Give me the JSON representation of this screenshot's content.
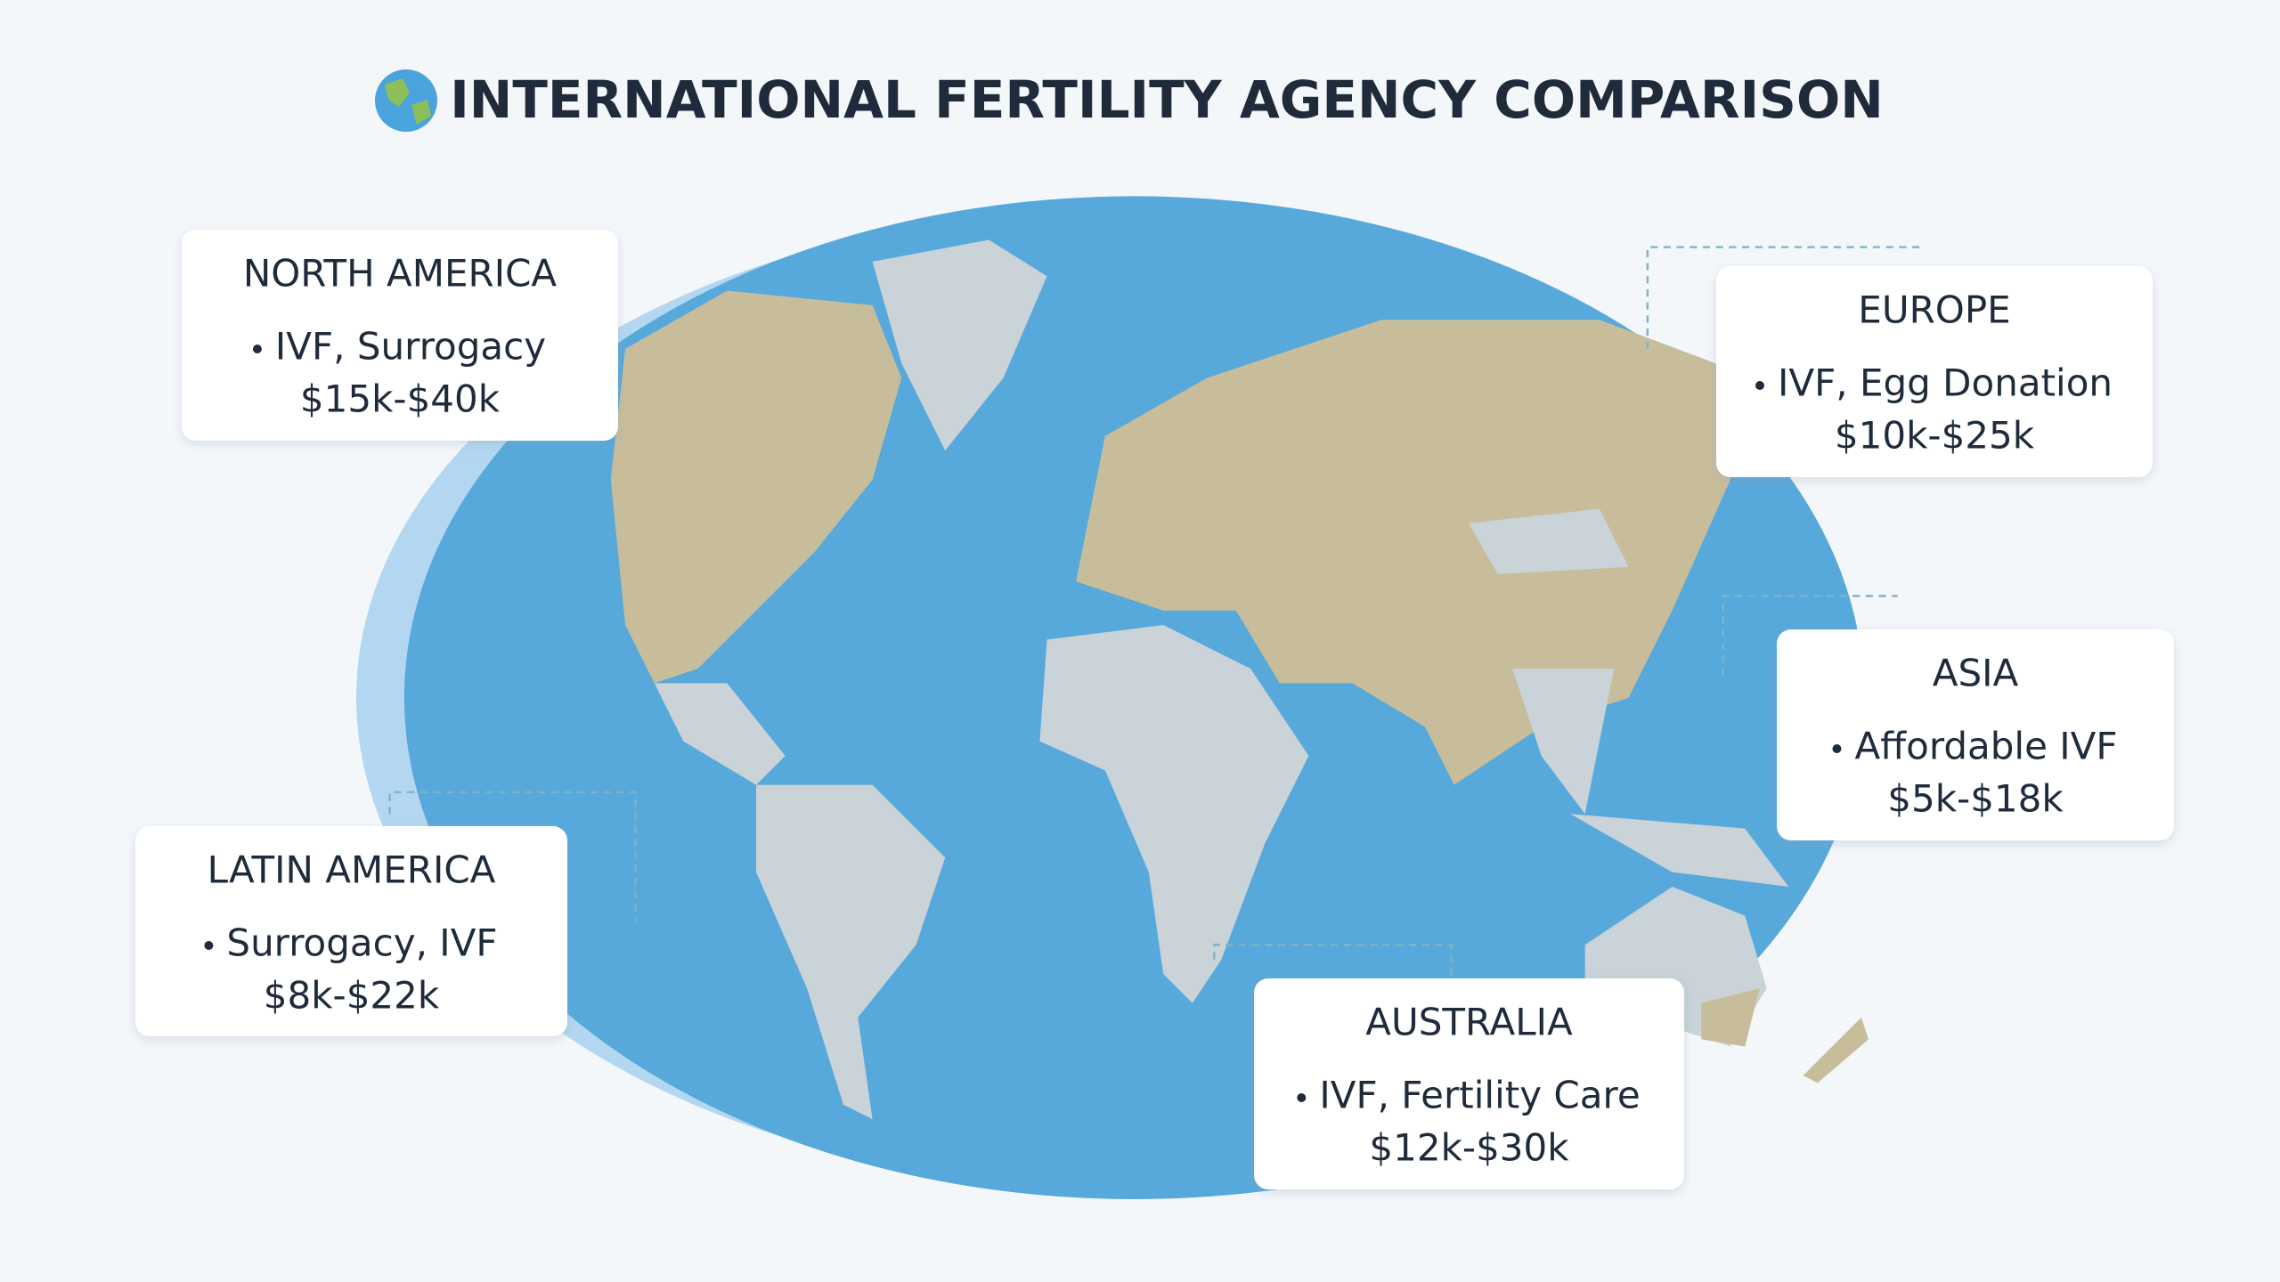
{
  "title": "INTERNATIONAL FERTILITY AGENCY COMPARISON",
  "regions": [
    {
      "name": "NORTH AMERICA",
      "services": "IVF, Surrogacy",
      "price": "$15k-$40k"
    },
    {
      "name": "EUROPE",
      "services": "IVF, Egg Donation",
      "price": "$10k-$25k"
    },
    {
      "name": "ASIA",
      "services": "Affordable IVF",
      "price": "$5k-$18k"
    },
    {
      "name": "LATIN AMERICA",
      "services": "Surrogacy, IVF",
      "price": "$8k-$22k"
    },
    {
      "name": "AUSTRALIA",
      "services": "IVF, Fertility Care",
      "price": "$12k-$30k"
    }
  ]
}
